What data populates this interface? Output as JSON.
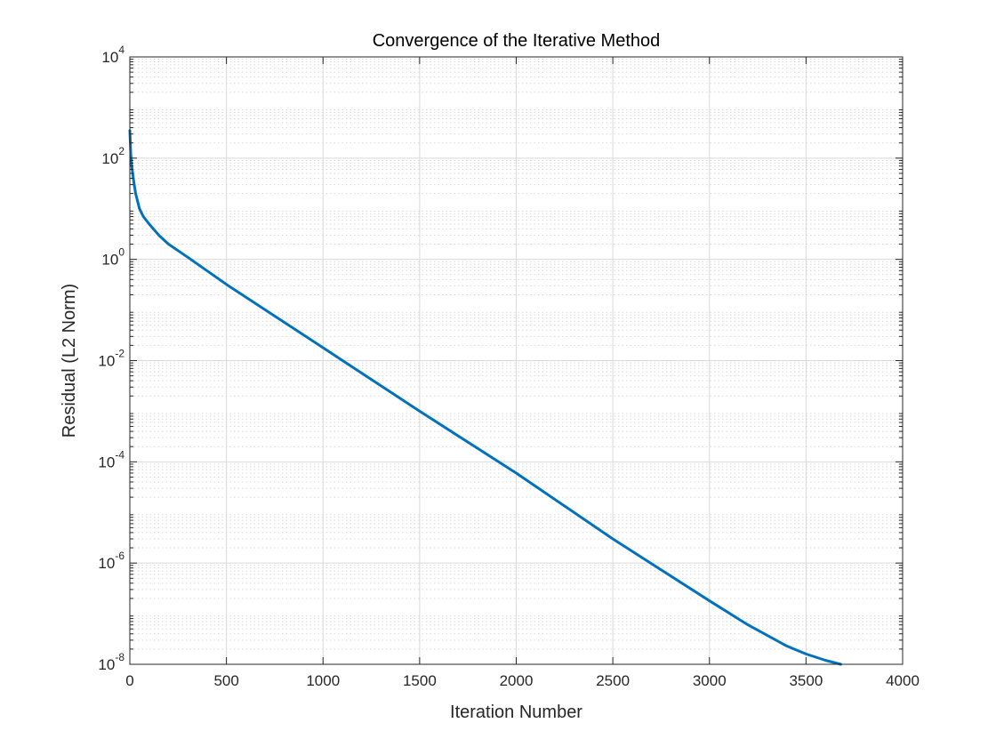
{
  "chart_data": {
    "type": "line",
    "title": "Convergence of the Iterative Method",
    "xlabel": "Iteration Number",
    "ylabel": "Residual (L2 Norm)",
    "xlim": [
      0,
      4000
    ],
    "ylim": [
      1e-08,
      10000
    ],
    "yscale": "log",
    "grid": true,
    "minor_grid": true,
    "legend": "none",
    "x_ticks": [
      0,
      500,
      1000,
      1500,
      2000,
      2500,
      3000,
      3500,
      4000
    ],
    "x_tick_labels": [
      "0",
      "500",
      "1000",
      "1500",
      "2000",
      "2500",
      "3000",
      "3500",
      "4000"
    ],
    "y_ticks": [
      1e-08,
      1e-06,
      0.0001,
      0.01,
      1,
      100,
      10000
    ],
    "y_tick_labels": [
      {
        "base": "10",
        "exp": "-8"
      },
      {
        "base": "10",
        "exp": "-6"
      },
      {
        "base": "10",
        "exp": "-4"
      },
      {
        "base": "10",
        "exp": "-2"
      },
      {
        "base": "10",
        "exp": "0"
      },
      {
        "base": "10",
        "exp": "2"
      },
      {
        "base": "10",
        "exp": "4"
      }
    ],
    "series": [
      {
        "color": "#0072BD",
        "x": [
          0,
          5,
          10,
          20,
          30,
          50,
          70,
          100,
          150,
          200,
          300,
          500,
          1000,
          1500,
          2000,
          2500,
          3000,
          3200,
          3400,
          3500,
          3600,
          3680
        ],
        "y": [
          350,
          120,
          70,
          35,
          20,
          10,
          7,
          5,
          3,
          2,
          1.1,
          0.32,
          0.018,
          0.001,
          6e-05,
          3e-06,
          1.8e-07,
          6e-08,
          2.3e-08,
          1.6e-08,
          1.2e-08,
          1e-08
        ]
      }
    ]
  }
}
